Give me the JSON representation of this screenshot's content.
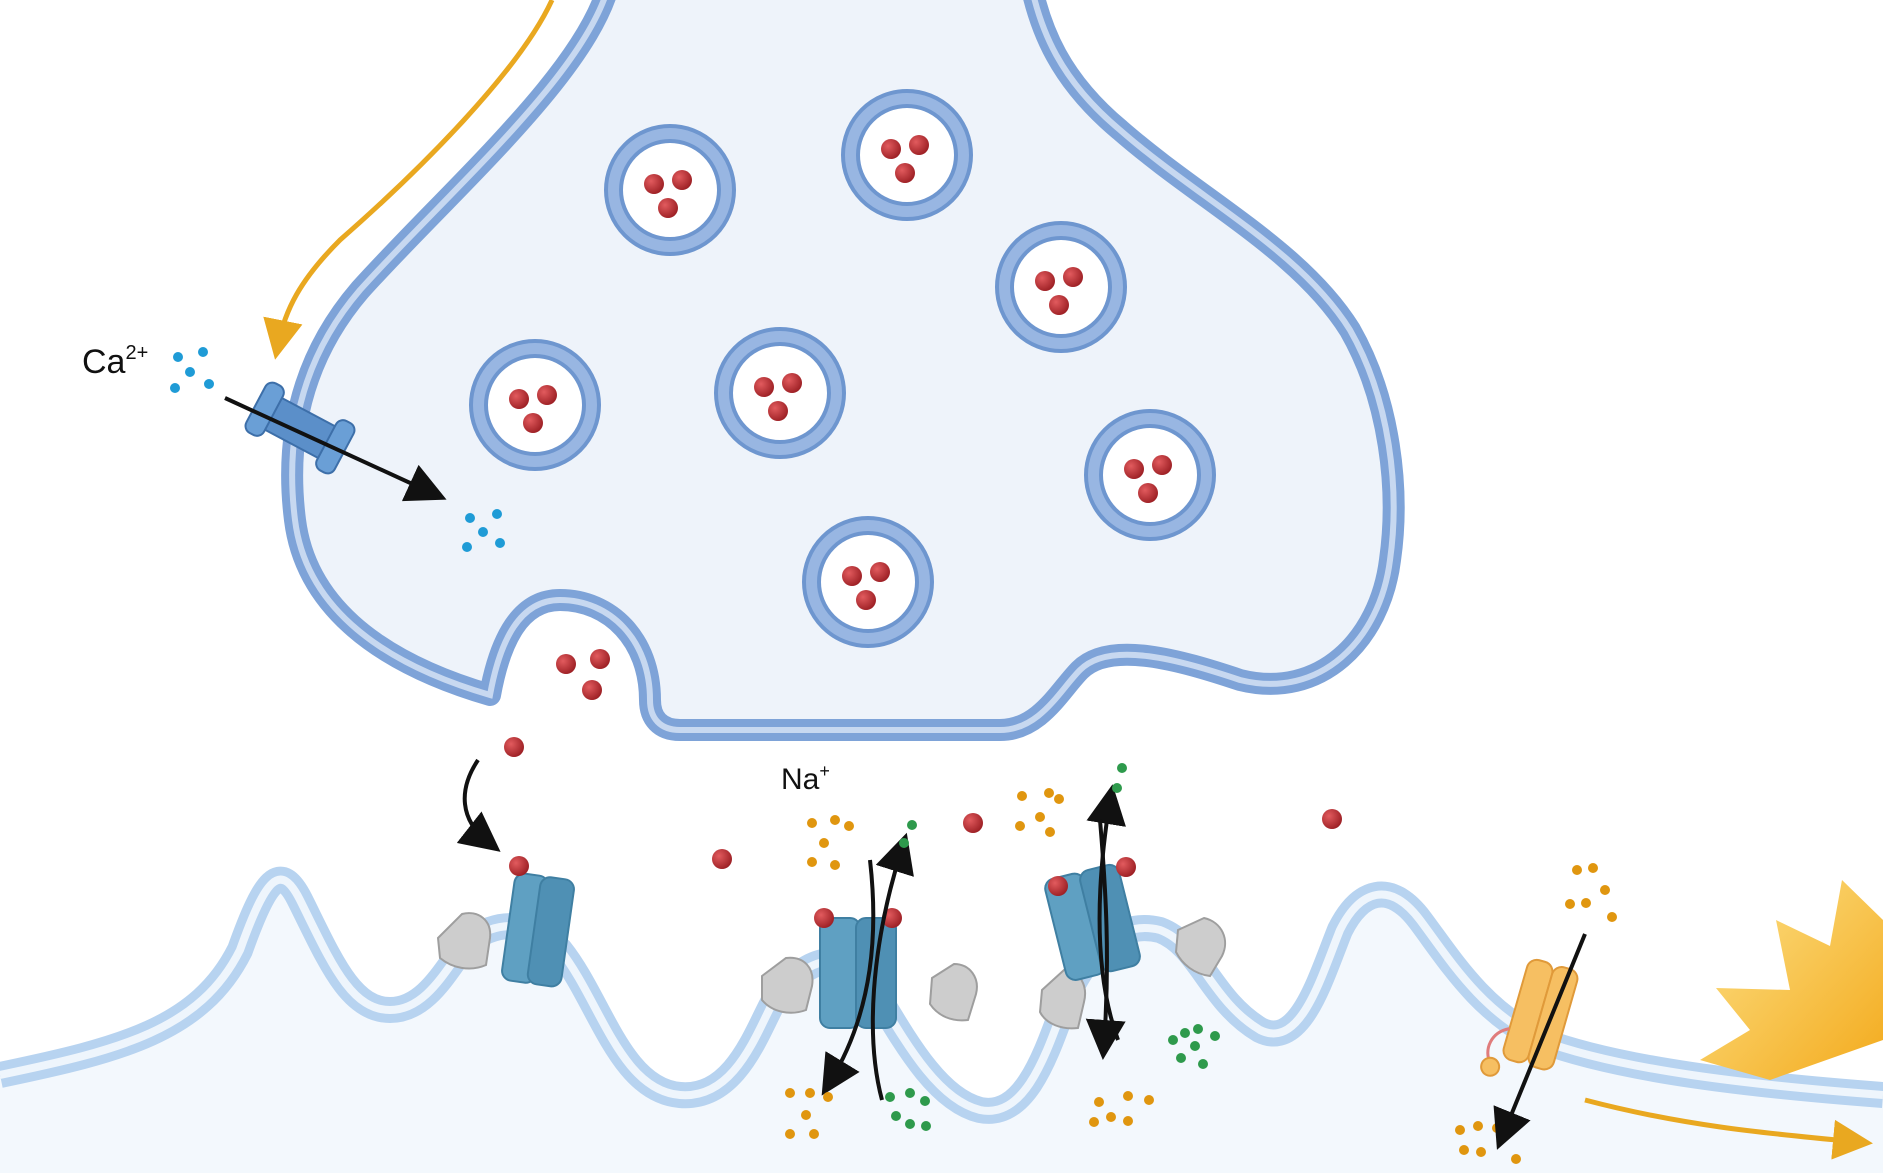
{
  "labels": {
    "calcium_base": "Ca",
    "calcium_charge": "2+",
    "sodium_base": "Na",
    "sodium_charge": "+"
  },
  "colors": {
    "presynaptic_membrane": "#7ea3d8",
    "presynaptic_fill": "#eef3fa",
    "postsynaptic_membrane": "#b7d3f0",
    "postsynaptic_fill": "#f3f8fd",
    "neurotransmitter": "#b52a2e",
    "calcium_ion": "#1f9bd6",
    "sodium_ion": "#e0960f",
    "potassium_ion": "#2e9a4c",
    "action_potential_arrow": "#e9a820",
    "channel_blue": "#5b8fc9",
    "receptor_teal": "#5fa0c2",
    "receptor_gray": "#c9c9c9",
    "orange_channel": "#f6bf62",
    "spark": "#f5b82e"
  },
  "icons": {
    "calcium_channel": "voltage-gated-calcium-channel-icon",
    "receptor": "ligand-gated-receptor-icon",
    "sodium_channel": "voltage-gated-sodium-channel-icon",
    "spark": "action-potential-spark-icon"
  }
}
